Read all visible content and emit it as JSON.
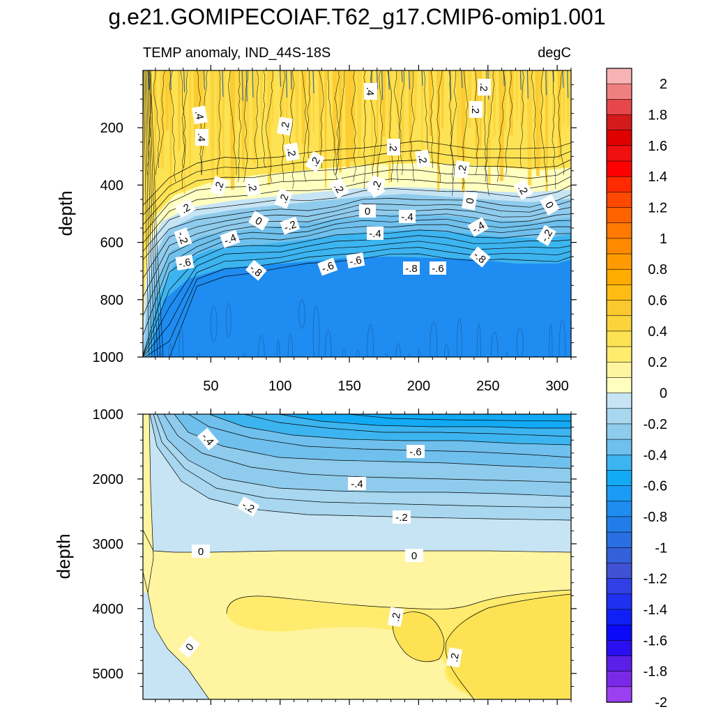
{
  "title": "g.e21.GOMIPECOIAF.T62_g17.CMIP6-omip1.001",
  "chart_data": {
    "type": "heatmap",
    "subtitle_left": "TEMP anomaly, IND_44S-18S",
    "subtitle_right": "degC",
    "colorbar": {
      "levels": [
        -2,
        -1.9,
        -1.8,
        -1.7,
        -1.6,
        -1.5,
        -1.4,
        -1.3,
        -1.2,
        -1.1,
        -1,
        -0.9,
        -0.8,
        -0.7,
        -0.6,
        -0.5,
        -0.4,
        -0.3,
        -0.2,
        -0.1,
        0,
        0.1,
        0.2,
        0.3,
        0.4,
        0.5,
        0.6,
        0.7,
        0.8,
        0.9,
        1,
        1.1,
        1.2,
        1.3,
        1.4,
        1.5,
        1.6,
        1.7,
        1.8,
        1.9,
        2
      ],
      "tick_labels": [
        "2",
        "1.8",
        "1.6",
        "1.4",
        "1.2",
        "1",
        "0.8",
        "0.6",
        "0.4",
        "0.2",
        "0",
        "-0.2",
        "-0.4",
        "-0.6",
        "-0.8",
        "-1",
        "-1.2",
        "-1.4",
        "-1.6",
        "-1.8",
        "-2"
      ],
      "colors_top_to_bottom": [
        "#f7b3b5",
        "#f08080",
        "#e6474a",
        "#d41a1a",
        "#e00000",
        "#f01010",
        "#ff0000",
        "#ff2a00",
        "#ff4800",
        "#ff6300",
        "#ff7a00",
        "#ff8a00",
        "#ff9b00",
        "#ffab00",
        "#ffbc14",
        "#fbc82e",
        "#fbd43c",
        "#fde354",
        "#ffec6e",
        "#fff4a0",
        "#ffffc0",
        "#c6e4f4",
        "#a8d7ef",
        "#8fcbec",
        "#6fc0ec",
        "#3cb4f0",
        "#12aaf5",
        "#1a9cf5",
        "#1e8cf0",
        "#237de9",
        "#2a6fe2",
        "#3361da",
        "#3f52d5",
        "#3040e6",
        "#2030f0",
        "#1020f5",
        "#0a0af8",
        "#2a10f0",
        "#5a20e8",
        "#7a2ae6",
        "#9a40f0"
      ]
    },
    "panels": [
      {
        "name": "upper",
        "ylabel": "depth",
        "xlim": [
          1,
          310
        ],
        "ylim": [
          0,
          1000
        ],
        "x_ticks": [
          "50",
          "100",
          "150",
          "200",
          "250",
          "300"
        ],
        "y_ticks": [
          "200",
          "400",
          "600",
          "800",
          "1000"
        ],
        "contour_labels": [
          ".4",
          ".2",
          ".4",
          ".2",
          ".4",
          ".2",
          ".2",
          ".2",
          ".2",
          ".2",
          ".2",
          ".2",
          ".2",
          ".2",
          ".2",
          ".2",
          ".2",
          ".2",
          ".2",
          "0",
          "0",
          "0",
          "0",
          "-.2",
          "-.2",
          "-.4",
          "-.4",
          "-.4",
          "-.4",
          "-.2",
          "-.6",
          "-.8",
          "-.6",
          "-.8",
          "-.6",
          "-.8",
          "-.6"
        ],
        "isotherm_depths": {
          "x": [
            1,
            20,
            40,
            60,
            80,
            100,
            120,
            140,
            160,
            180,
            200,
            220,
            240,
            260,
            280,
            300,
            310
          ],
          "zero_contour": [
            660,
            560,
            520,
            500,
            495,
            490,
            485,
            470,
            455,
            450,
            445,
            450,
            460,
            470,
            470,
            455,
            440
          ],
          "minus_0_4": [
            1000,
            700,
            630,
            600,
            590,
            585,
            575,
            560,
            545,
            540,
            540,
            545,
            555,
            560,
            560,
            550,
            540
          ],
          "minus_0_8": [
            1000,
            1000,
            760,
            720,
            700,
            690,
            680,
            665,
            650,
            645,
            645,
            650,
            660,
            665,
            665,
            660,
            650
          ]
        }
      },
      {
        "name": "lower",
        "ylabel": "depth",
        "xlim": [
          1,
          310
        ],
        "ylim": [
          1000,
          5400
        ],
        "y_ticks": [
          "1000",
          "2000",
          "3000",
          "4000",
          "5000"
        ],
        "contour_labels": [
          "-.4",
          "-.6",
          "-.4",
          "-.2",
          "-.2",
          "0",
          "0",
          "0",
          ".2",
          ".2"
        ]
      }
    ]
  }
}
